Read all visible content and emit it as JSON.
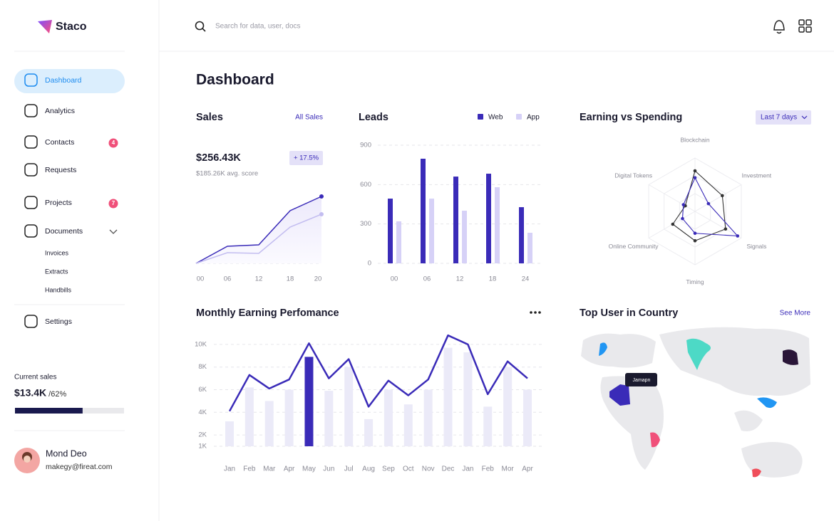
{
  "sidebar": {
    "brand": "Staco",
    "nav": [
      {
        "label": "Dashboard"
      },
      {
        "label": "Analytics"
      },
      {
        "label": "Contacts",
        "badge": 4
      },
      {
        "label": "Requests"
      },
      {
        "label": "Projects",
        "badge": 7
      },
      {
        "label": "Documents"
      }
    ],
    "sub_nav": [
      "Invoices",
      "Extracts",
      "Handbills"
    ],
    "settings": "Settings",
    "current_sales": {
      "label": "Current sales",
      "value": "$13.4K",
      "progress": {
        "value": 62,
        "label": "/62%"
      }
    },
    "user": {
      "name": "Mond Deo",
      "email": "makegy@fireat.com"
    }
  },
  "header": {
    "search_placeholder": "Search for data, user, docs"
  },
  "page_title": "Dashboard",
  "map": {
    "title": "Top User in Country",
    "link": "See More",
    "tooltip": "Jamapn"
  },
  "chart_data": [
    {
      "type": "line",
      "title": "Sales",
      "link": "All Sales",
      "value": "$256.43K",
      "change": "+ 17.5%",
      "subtitle": "$185.26K avg. score",
      "categories": [
        "00",
        "06",
        "12",
        "18",
        "20"
      ],
      "ylim": [
        0,
        100
      ],
      "series": [
        {
          "color": "#3a2bb8",
          "values": [
            0,
            24,
            26,
            74,
            94
          ]
        },
        {
          "color": "#c3bdf0",
          "values": [
            0,
            15,
            14,
            51,
            69
          ]
        }
      ]
    },
    {
      "type": "bar",
      "title": "Leads",
      "categories": [
        "00",
        "06",
        "12",
        "18",
        "24"
      ],
      "ylim": [
        0,
        900
      ],
      "yticks": [
        0,
        300,
        600,
        900
      ],
      "grid": true,
      "series": [
        {
          "name": "Web",
          "color": "#3a2bb8",
          "values": [
            493,
            797,
            661,
            683,
            428
          ]
        },
        {
          "name": "App",
          "color": "#d6d1f7",
          "values": [
            320,
            493,
            401,
            580,
            233
          ]
        }
      ]
    },
    {
      "type": "radar",
      "title": "Earning vs Spending",
      "dropdown": "Last 7 days",
      "axes": [
        "Blockchain",
        "Investment",
        "Signals",
        "Timing",
        "Online Community",
        "Digital Tokens"
      ],
      "rlim": [
        0,
        100
      ],
      "series": [
        {
          "color": "#333333",
          "values": [
            76,
            59,
            66,
            55,
            48,
            21
          ]
        },
        {
          "color": "#3a2bb8",
          "values": [
            63,
            29,
            92,
            41,
            27,
            25
          ]
        }
      ]
    },
    {
      "type": "bar_line",
      "title": "Monthly Earning Perfomance",
      "categories": [
        "Jan",
        "Feb",
        "Mar",
        "Apr",
        "May",
        "Jun",
        "Jul",
        "Aug",
        "Sep",
        "Oct",
        "Nov",
        "Dec",
        "Jan",
        "Feb",
        "Mor",
        "Apr"
      ],
      "ylim": [
        1000,
        11000
      ],
      "yticks": [
        {
          "value": 1000,
          "label": "1K"
        },
        {
          "value": 2000,
          "label": "2K"
        },
        {
          "value": 4000,
          "label": "4K"
        },
        {
          "value": 6000,
          "label": "6K"
        },
        {
          "value": 8000,
          "label": "8K"
        },
        {
          "value": 10000,
          "label": "10K"
        }
      ],
      "grid": true,
      "series": [
        {
          "type": "bar",
          "colors": [
            "#ebeaf8",
            "#ebeaf8",
            "#ebeaf8",
            "#ebeaf8",
            "#3a2bb8",
            "#ebeaf8",
            "#ebeaf8",
            "#ebeaf8",
            "#ebeaf8",
            "#ebeaf8",
            "#ebeaf8",
            "#ebeaf8",
            "#ebeaf8",
            "#ebeaf8",
            "#ebeaf8",
            "#ebeaf8"
          ],
          "values": [
            3200,
            6200,
            5000,
            6000,
            8900,
            5900,
            8000,
            3400,
            6000,
            4700,
            6000,
            9700,
            9300,
            4500,
            8000,
            6000
          ]
        },
        {
          "type": "line",
          "color": "#3a2bb8",
          "values": [
            4100,
            7300,
            6100,
            6900,
            10100,
            7000,
            8700,
            4500,
            6800,
            5500,
            6900,
            10800,
            10000,
            5600,
            8500,
            7000
          ]
        }
      ]
    }
  ]
}
